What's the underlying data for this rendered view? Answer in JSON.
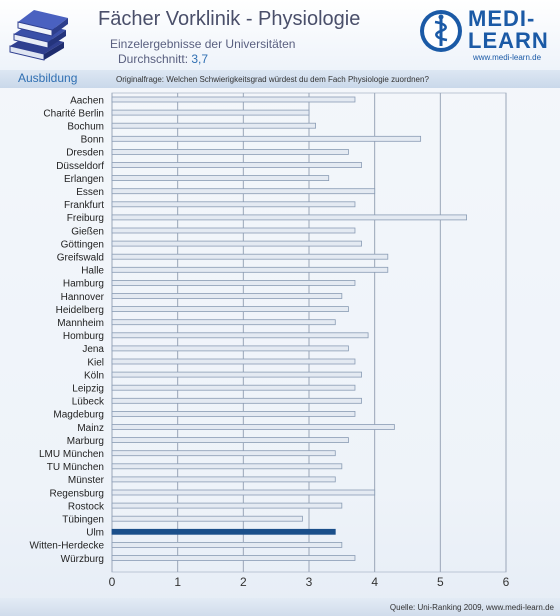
{
  "header": {
    "title": "Fächer Vorklinik - Physiologie",
    "subtitle": "Einzelergebnisse der Universitäten",
    "average_label": "Durchschnitt:",
    "average_value": "3,7",
    "logo_top": "MEDI-",
    "logo_bottom": "LEARN",
    "logo_url": "www.medi-learn.de"
  },
  "section": {
    "label": "Ausbildung",
    "question": "Originalfrage: Welchen Schwierigkeitsgrad würdest du dem Fach Physiologie zuordnen?"
  },
  "footer": {
    "source": "Quelle: Uni-Ranking 2009, www.medi-learn.de"
  },
  "colors": {
    "bar": "#e4eaf2",
    "bar_border": "#8a9cb4",
    "highlight": "#1a4f8a"
  },
  "chart_data": {
    "type": "bar",
    "orientation": "horizontal",
    "categories": [
      "Aachen",
      "Charité Berlin",
      "Bochum",
      "Bonn",
      "Dresden",
      "Düsseldorf",
      "Erlangen",
      "Essen",
      "Frankfurt",
      "Freiburg",
      "Gießen",
      "Göttingen",
      "Greifswald",
      "Halle",
      "Hamburg",
      "Hannover",
      "Heidelberg",
      "Mannheim",
      "Homburg",
      "Jena",
      "Kiel",
      "Köln",
      "Leipzig",
      "Lübeck",
      "Magdeburg",
      "Mainz",
      "Marburg",
      "LMU München",
      "TU München",
      "Münster",
      "Regensburg",
      "Rostock",
      "Tübingen",
      "Ulm",
      "Witten-Herdecke",
      "Würzburg"
    ],
    "values": [
      3.7,
      3.0,
      3.1,
      4.7,
      3.6,
      3.8,
      3.3,
      4.0,
      3.7,
      5.4,
      3.7,
      3.8,
      4.2,
      4.2,
      3.7,
      3.5,
      3.6,
      3.4,
      3.9,
      3.6,
      3.7,
      3.8,
      3.7,
      3.8,
      3.7,
      4.3,
      3.6,
      3.4,
      3.5,
      3.4,
      4.0,
      3.5,
      2.9,
      3.4,
      3.5,
      3.7
    ],
    "highlight": "Ulm",
    "xlim": [
      0,
      6
    ],
    "xticks": [
      "0",
      "1",
      "2",
      "3",
      "4",
      "5",
      "6"
    ],
    "grid": true
  }
}
